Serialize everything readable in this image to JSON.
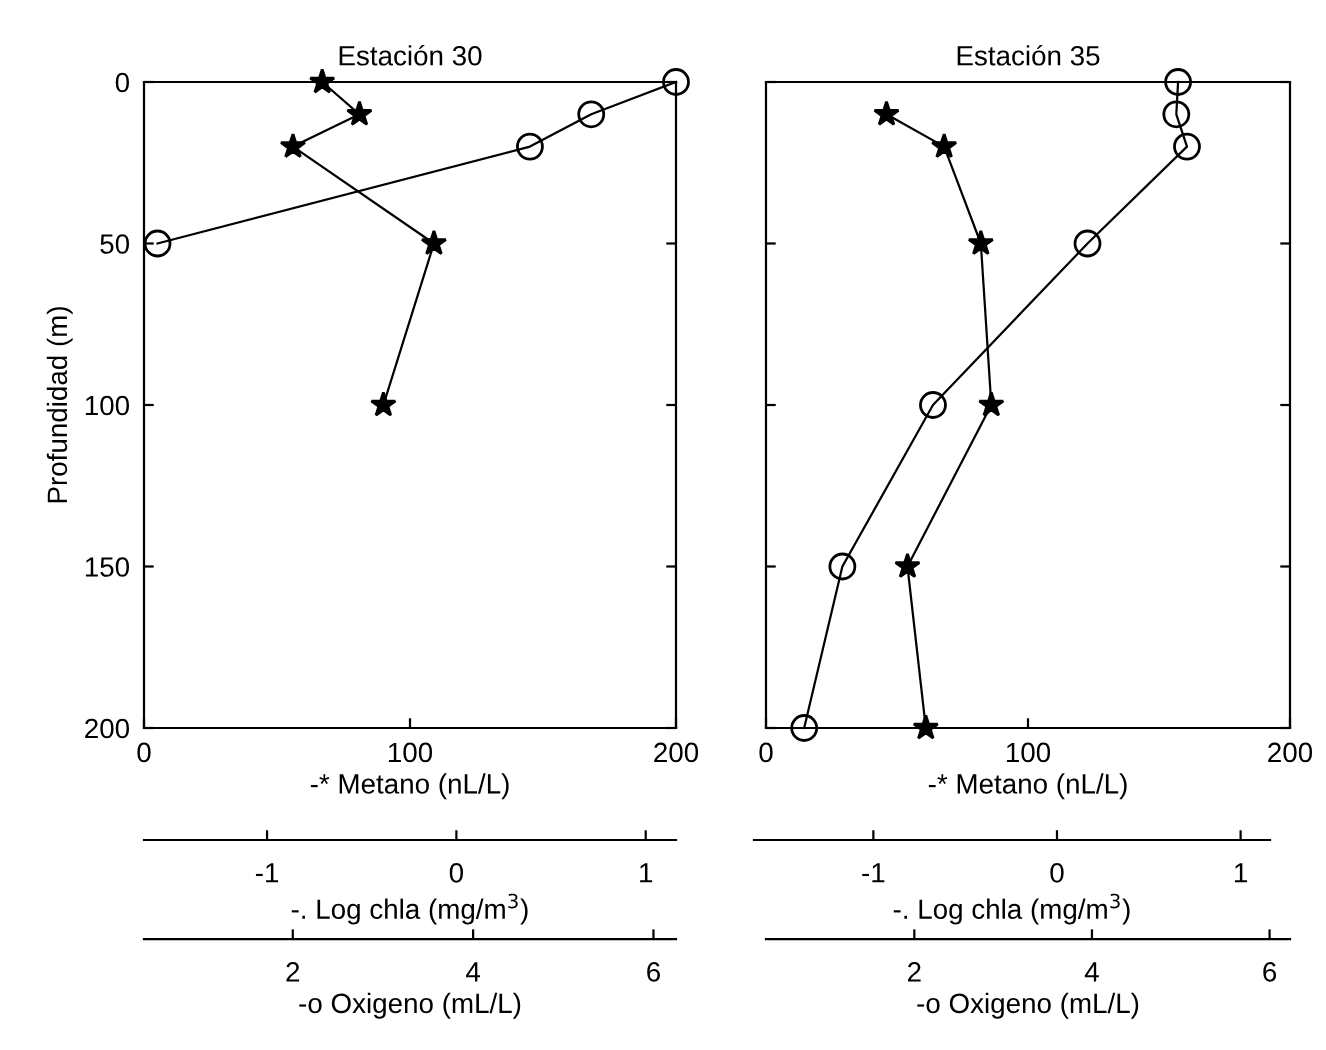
{
  "chart_data": [
    {
      "type": "line",
      "title": "Estación 30",
      "ylabel": "Profundidad (m)",
      "xlabel": "-* Metano (nL/L)",
      "x2label": "-o Oxigeno (mL/L)",
      "xlim": [
        0,
        200
      ],
      "xticks": [
        0,
        100,
        200
      ],
      "ylim": [
        200,
        0
      ],
      "yticks": [
        0,
        50,
        100,
        150,
        200
      ],
      "x2lim": [
        0.35,
        6.25
      ],
      "x2ticks": [
        2,
        4,
        6
      ],
      "series": [
        {
          "color": "#000000",
          "marker": "star",
          "line_style": "solid",
          "x": [
            67,
            81,
            56,
            109,
            90
          ],
          "values": [
            0,
            10,
            20,
            50,
            100
          ]
        },
        {
          "color": "#000000",
          "marker": "circle",
          "line_style": "solid",
          "axis": "x2",
          "x": [
            6.25,
            5.31,
            4.63,
            0.5
          ],
          "values": [
            0,
            10,
            20,
            50
          ]
        }
      ]
    },
    {
      "type": "line",
      "title": "Estación 35",
      "xlabel": "-* Metano (nL/L)",
      "x2label": "-o Oxigeno (mL/L)",
      "xlim": [
        0,
        200
      ],
      "xticks": [
        0,
        100,
        200
      ],
      "ylim": [
        200,
        0
      ],
      "yticks": [
        {
          "value": 0,
          "label": null
        },
        {
          "value": 50,
          "label": null
        },
        {
          "value": 100,
          "label": null
        },
        {
          "value": 150,
          "label": null
        },
        {
          "value": 200,
          "label": null
        }
      ],
      "x2lim": [
        0.33,
        6.23
      ],
      "x2ticks": [
        2,
        4,
        6
      ],
      "tick_labels": "x",
      "series": [
        {
          "color": "#000000",
          "marker": "star",
          "line_style": "solid",
          "x": [
            46,
            68,
            82,
            86,
            54,
            61
          ],
          "values": [
            10,
            20,
            50,
            100,
            150,
            200
          ]
        },
        {
          "color": "#000000",
          "marker": "circle",
          "line_style": "solid",
          "axis": "x2",
          "x": [
            4.97,
            4.95,
            5.07,
            3.95,
            2.21,
            1.19,
            0.76
          ],
          "values": [
            0,
            10,
            20,
            50,
            100,
            150,
            200
          ]
        }
      ]
    },
    {
      "type": "other",
      "xlabel": "-. Log chla (mg/m$^{3}$)",
      "annotations": [
        "-1",
        "0",
        "1"
      ]
    },
    {
      "type": "other",
      "xlabel": "-. Log chla (mg/m$^{3}$)",
      "annotations": [
        "-1",
        "0",
        "1"
      ]
    }
  ]
}
